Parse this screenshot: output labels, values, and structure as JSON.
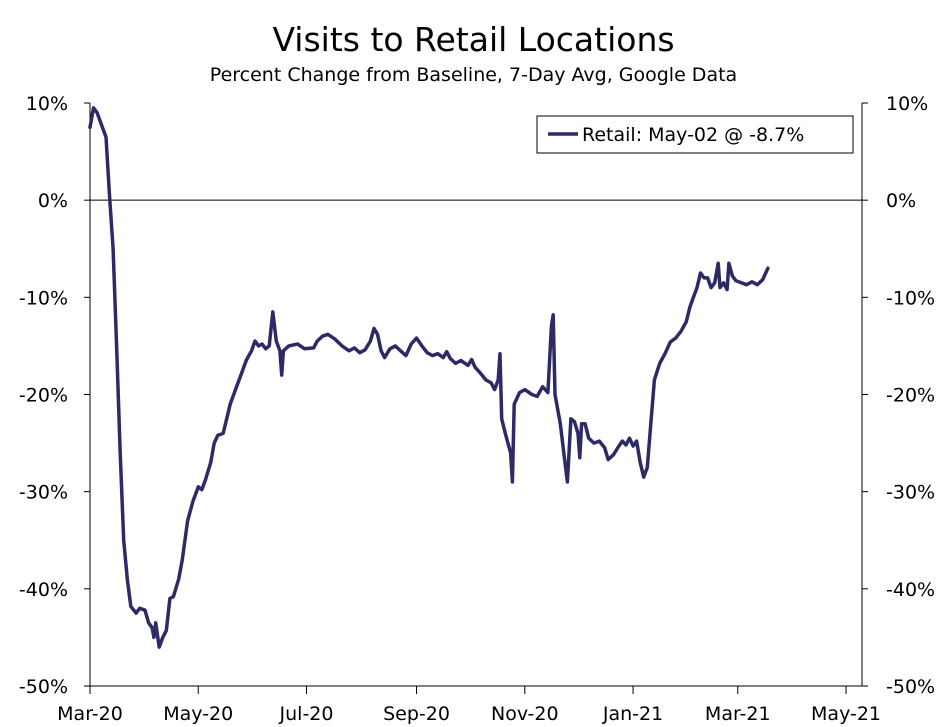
{
  "chart_data": {
    "type": "line",
    "title": "Visits to Retail Locations",
    "subtitle": "Percent Change from Baseline, 7-Day Avg, Google Data",
    "xlabel": "",
    "ylabel": "",
    "ylim": [
      -50,
      10
    ],
    "y_ticks": [
      10,
      0,
      -10,
      -20,
      -30,
      -40,
      -50
    ],
    "y_tick_labels": [
      "10%",
      "0%",
      "-10%",
      "-20%",
      "-30%",
      "-40%",
      "-50%"
    ],
    "x_tick_labels": [
      "Mar-20",
      "May-20",
      "Jul-20",
      "Sep-20",
      "Nov-20",
      "Jan-21",
      "Mar-21",
      "May-21"
    ],
    "x_tick_dates": [
      "2020-03-01",
      "2020-05-01",
      "2020-07-01",
      "2020-09-01",
      "2020-11-01",
      "2021-01-01",
      "2021-03-01",
      "2021-05-01"
    ],
    "xlim": [
      "2020-03-01",
      "2021-05-10"
    ],
    "grid": false,
    "zero_line": true,
    "right_axis": true,
    "legend_position": "top-right",
    "colors": {
      "series": "#2e2a66",
      "axis": "#000000"
    },
    "series": [
      {
        "name": "Retail: May-02 @ -8.7%",
        "points": [
          [
            "2020-03-01",
            7.5
          ],
          [
            "2020-03-03",
            9.5
          ],
          [
            "2020-03-05",
            9.0
          ],
          [
            "2020-03-08",
            7.5
          ],
          [
            "2020-03-10",
            6.5
          ],
          [
            "2020-03-12",
            0.5
          ],
          [
            "2020-03-14",
            -5.0
          ],
          [
            "2020-03-16",
            -15.0
          ],
          [
            "2020-03-18",
            -26.0
          ],
          [
            "2020-03-20",
            -35.0
          ],
          [
            "2020-03-22",
            -39.0
          ],
          [
            "2020-03-24",
            -41.8
          ],
          [
            "2020-03-27",
            -42.5
          ],
          [
            "2020-03-29",
            -42.0
          ],
          [
            "2020-04-01",
            -42.2
          ],
          [
            "2020-04-03",
            -43.5
          ],
          [
            "2020-04-05",
            -44.0
          ],
          [
            "2020-04-06",
            -45.0
          ],
          [
            "2020-04-07",
            -43.5
          ],
          [
            "2020-04-09",
            -46.0
          ],
          [
            "2020-04-11",
            -45.0
          ],
          [
            "2020-04-13",
            -44.3
          ],
          [
            "2020-04-15",
            -41.0
          ],
          [
            "2020-04-17",
            -40.8
          ],
          [
            "2020-04-20",
            -39.0
          ],
          [
            "2020-04-22",
            -37.0
          ],
          [
            "2020-04-25",
            -33.0
          ],
          [
            "2020-04-28",
            -31.0
          ],
          [
            "2020-05-01",
            -29.5
          ],
          [
            "2020-05-03",
            -29.8
          ],
          [
            "2020-05-05",
            -28.8
          ],
          [
            "2020-05-08",
            -27.0
          ],
          [
            "2020-05-10",
            -25.0
          ],
          [
            "2020-05-12",
            -24.2
          ],
          [
            "2020-05-15",
            -24.0
          ],
          [
            "2020-05-17",
            -22.5
          ],
          [
            "2020-05-19",
            -21.0
          ],
          [
            "2020-05-22",
            -19.5
          ],
          [
            "2020-05-25",
            -18.0
          ],
          [
            "2020-05-28",
            -16.5
          ],
          [
            "2020-05-31",
            -15.5
          ],
          [
            "2020-06-02",
            -14.5
          ],
          [
            "2020-06-04",
            -15.0
          ],
          [
            "2020-06-06",
            -14.8
          ],
          [
            "2020-06-08",
            -15.3
          ],
          [
            "2020-06-10",
            -15.0
          ],
          [
            "2020-06-12",
            -11.5
          ],
          [
            "2020-06-14",
            -14.5
          ],
          [
            "2020-06-16",
            -15.5
          ],
          [
            "2020-06-17",
            -18.0
          ],
          [
            "2020-06-18",
            -15.5
          ],
          [
            "2020-06-21",
            -15.0
          ],
          [
            "2020-06-26",
            -14.8
          ],
          [
            "2020-06-30",
            -15.3
          ],
          [
            "2020-07-05",
            -15.2
          ],
          [
            "2020-07-07",
            -14.5
          ],
          [
            "2020-07-10",
            -14.0
          ],
          [
            "2020-07-13",
            -13.8
          ],
          [
            "2020-07-17",
            -14.3
          ],
          [
            "2020-07-21",
            -15.0
          ],
          [
            "2020-07-25",
            -15.5
          ],
          [
            "2020-07-28",
            -15.2
          ],
          [
            "2020-07-31",
            -15.7
          ],
          [
            "2020-08-03",
            -15.4
          ],
          [
            "2020-08-06",
            -14.5
          ],
          [
            "2020-08-08",
            -13.2
          ],
          [
            "2020-08-10",
            -13.8
          ],
          [
            "2020-08-12",
            -15.5
          ],
          [
            "2020-08-14",
            -16.2
          ],
          [
            "2020-08-17",
            -15.3
          ],
          [
            "2020-08-20",
            -15.0
          ],
          [
            "2020-08-23",
            -15.5
          ],
          [
            "2020-08-26",
            -16.0
          ],
          [
            "2020-08-29",
            -14.8
          ],
          [
            "2020-09-01",
            -14.2
          ],
          [
            "2020-09-04",
            -15.0
          ],
          [
            "2020-09-07",
            -15.7
          ],
          [
            "2020-09-10",
            -16.0
          ],
          [
            "2020-09-13",
            -15.8
          ],
          [
            "2020-09-16",
            -16.2
          ],
          [
            "2020-09-18",
            -15.6
          ],
          [
            "2020-09-20",
            -16.3
          ],
          [
            "2020-09-23",
            -16.8
          ],
          [
            "2020-09-26",
            -16.5
          ],
          [
            "2020-09-30",
            -17.0
          ],
          [
            "2020-10-02",
            -16.4
          ],
          [
            "2020-10-04",
            -17.2
          ],
          [
            "2020-10-07",
            -17.8
          ],
          [
            "2020-10-10",
            -18.5
          ],
          [
            "2020-10-13",
            -18.8
          ],
          [
            "2020-10-15",
            -19.5
          ],
          [
            "2020-10-17",
            -18.5
          ],
          [
            "2020-10-18",
            -15.8
          ],
          [
            "2020-10-19",
            -22.5
          ],
          [
            "2020-10-21",
            -24.0
          ],
          [
            "2020-10-24",
            -26.0
          ],
          [
            "2020-10-25",
            -29.0
          ],
          [
            "2020-10-26",
            -21.0
          ],
          [
            "2020-10-29",
            -19.8
          ],
          [
            "2020-11-01",
            -19.5
          ],
          [
            "2020-11-05",
            -20.0
          ],
          [
            "2020-11-08",
            -20.2
          ],
          [
            "2020-11-11",
            -19.2
          ],
          [
            "2020-11-14",
            -19.8
          ],
          [
            "2020-11-16",
            -13.0
          ],
          [
            "2020-11-17",
            -11.8
          ],
          [
            "2020-11-18",
            -20.0
          ],
          [
            "2020-11-21",
            -23.0
          ],
          [
            "2020-11-23",
            -26.0
          ],
          [
            "2020-11-25",
            -29.0
          ],
          [
            "2020-11-27",
            -22.5
          ],
          [
            "2020-11-29",
            -22.8
          ],
          [
            "2020-12-01",
            -24.0
          ],
          [
            "2020-12-02",
            -26.5
          ],
          [
            "2020-12-03",
            -23.0
          ],
          [
            "2020-12-05",
            -23.0
          ],
          [
            "2020-12-07",
            -24.5
          ],
          [
            "2020-12-10",
            -25.0
          ],
          [
            "2020-12-13",
            -24.8
          ],
          [
            "2020-12-16",
            -25.5
          ],
          [
            "2020-12-18",
            -26.7
          ],
          [
            "2020-12-21",
            -26.2
          ],
          [
            "2020-12-24",
            -25.3
          ],
          [
            "2020-12-26",
            -24.8
          ],
          [
            "2020-12-28",
            -25.2
          ],
          [
            "2020-12-30",
            -24.5
          ],
          [
            "2021-01-01",
            -25.3
          ],
          [
            "2021-01-03",
            -24.8
          ],
          [
            "2021-01-05",
            -27.0
          ],
          [
            "2021-01-07",
            -28.5
          ],
          [
            "2021-01-09",
            -27.5
          ],
          [
            "2021-01-11",
            -23.0
          ],
          [
            "2021-01-13",
            -18.5
          ],
          [
            "2021-01-16",
            -16.8
          ],
          [
            "2021-01-19",
            -15.8
          ],
          [
            "2021-01-22",
            -14.6
          ],
          [
            "2021-01-25",
            -14.2
          ],
          [
            "2021-01-28",
            -13.5
          ],
          [
            "2021-01-31",
            -12.5
          ],
          [
            "2021-02-02",
            -11.0
          ],
          [
            "2021-02-04",
            -10.0
          ],
          [
            "2021-02-06",
            -9.0
          ],
          [
            "2021-02-08",
            -7.5
          ],
          [
            "2021-02-10",
            -8.0
          ],
          [
            "2021-02-12",
            -8.0
          ],
          [
            "2021-02-14",
            -9.0
          ],
          [
            "2021-02-16",
            -8.5
          ],
          [
            "2021-02-18",
            -6.5
          ],
          [
            "2021-02-19",
            -9.0
          ],
          [
            "2021-02-21",
            -8.5
          ],
          [
            "2021-02-23",
            -9.2
          ],
          [
            "2021-02-24",
            -6.5
          ],
          [
            "2021-02-26",
            -7.8
          ],
          [
            "2021-02-28",
            -8.3
          ],
          [
            "2021-03-03",
            -8.5
          ],
          [
            "2021-03-06",
            -8.7
          ],
          [
            "2021-03-09",
            -8.4
          ],
          [
            "2021-03-12",
            -8.7
          ],
          [
            "2021-03-15",
            -8.2
          ],
          [
            "2021-03-18",
            -7.0
          ]
        ]
      }
    ]
  }
}
